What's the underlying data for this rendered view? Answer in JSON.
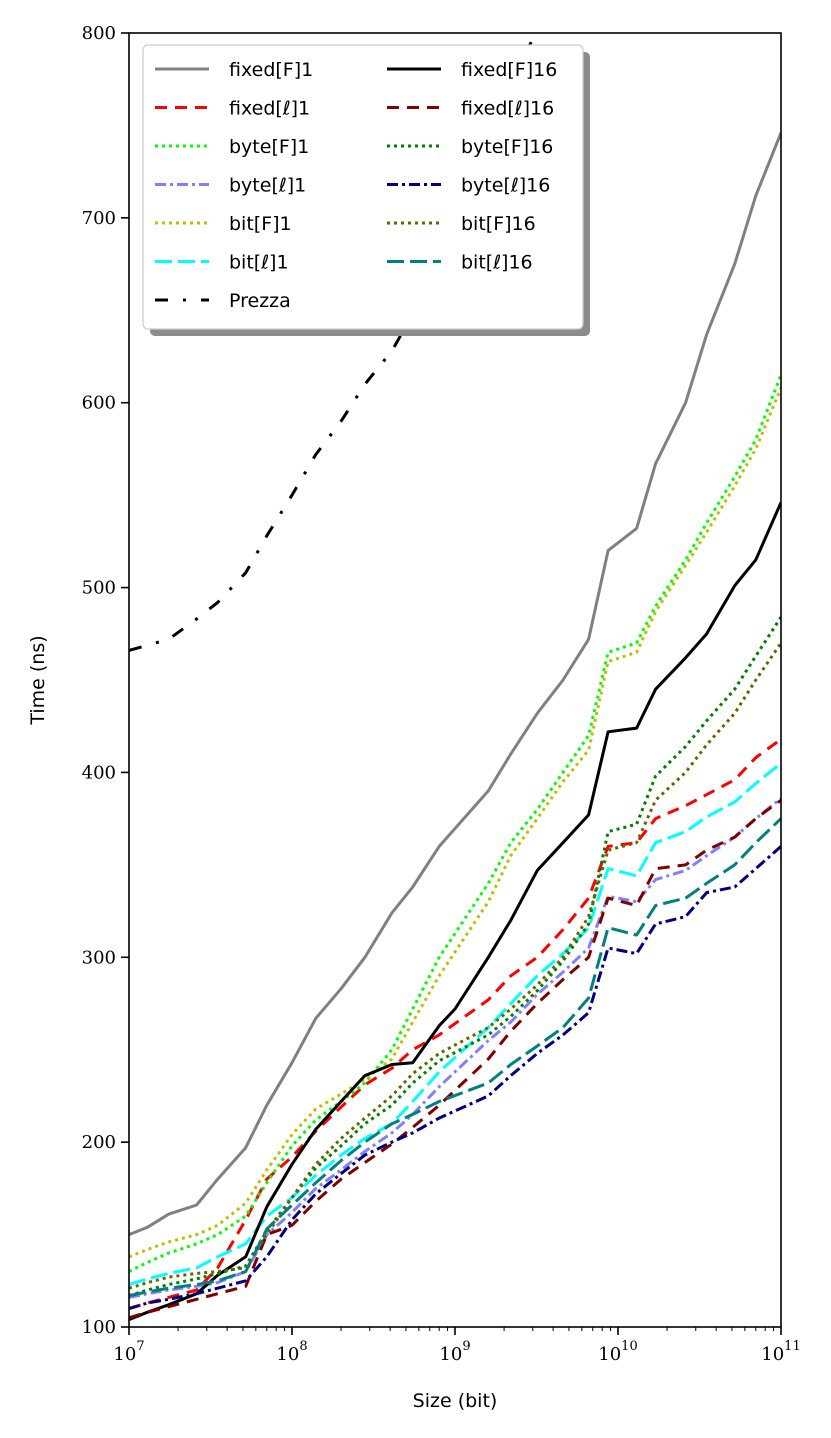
{
  "chart_data": {
    "type": "line",
    "title": "",
    "xlabel": "Size (bit)",
    "ylabel": "Time (ns)",
    "x_scale": "log",
    "xlim": [
      10000000,
      100000000000
    ],
    "ylim": [
      100,
      800
    ],
    "x_ticks": [
      {
        "value": 10000000,
        "base": "10",
        "exp": "7"
      },
      {
        "value": 100000000,
        "base": "10",
        "exp": "8"
      },
      {
        "value": 1000000000,
        "base": "10",
        "exp": "9"
      },
      {
        "value": 10000000000,
        "base": "10",
        "exp": "10"
      },
      {
        "value": 100000000000,
        "base": "10",
        "exp": "11"
      }
    ],
    "y_ticks": [
      {
        "value": 100,
        "label": "100"
      },
      {
        "value": 200,
        "label": "200"
      },
      {
        "value": 300,
        "label": "300"
      },
      {
        "value": 400,
        "label": "400"
      },
      {
        "value": 500,
        "label": "500"
      },
      {
        "value": 600,
        "label": "600"
      },
      {
        "value": 700,
        "label": "700"
      },
      {
        "value": 800,
        "label": "800"
      }
    ],
    "grid": false,
    "legend": {
      "position": "top-left",
      "columns": 2
    },
    "series": [
      {
        "name": "fixed[F]1",
        "color": "#808080",
        "dash": "solid",
        "x": [
          10000000.0,
          13000000.0,
          17500000.0,
          26000000.0,
          35000000.0,
          52000000.0,
          70000000.0,
          100000000.0,
          140000000.0,
          200000000.0,
          280000000.0,
          410000000.0,
          550000000.0,
          800000000.0,
          1600000000.0,
          2200000000.0,
          3200000000.0,
          4600000000.0,
          6600000000.0,
          8700000000.0,
          13000000000.0,
          17000000000.0,
          26000000000.0,
          35000000000.0,
          52000000000.0,
          70000000000.0,
          100000000000.0
        ],
        "y": [
          150,
          154,
          161,
          166,
          180,
          197,
          220,
          243,
          267,
          283,
          300,
          324,
          338,
          360,
          390,
          410,
          432,
          450,
          472,
          520,
          532,
          567,
          600,
          637,
          675,
          712,
          746
        ]
      },
      {
        "name": "fixed[ℓ]1",
        "color": "#ff0000",
        "dash": "dashed",
        "x": [
          10000000.0,
          13000000.0,
          17500000.0,
          26000000.0,
          35000000.0,
          52000000.0,
          70000000.0,
          100000000.0,
          140000000.0,
          200000000.0,
          280000000.0,
          410000000.0,
          550000000.0,
          800000000.0,
          1600000000.0,
          2200000000.0,
          3200000000.0,
          4600000000.0,
          6600000000.0,
          8700000000.0,
          13000000000.0,
          17000000000.0,
          26000000000.0,
          35000000000.0,
          52000000000.0,
          70000000000.0,
          100000000000.0
        ],
        "y": [
          110,
          113,
          116,
          120,
          132,
          158,
          180,
          192,
          206,
          219,
          231,
          240,
          250,
          258,
          277,
          290,
          300,
          315,
          332,
          360,
          362,
          375,
          382,
          388,
          396,
          408,
          418
        ]
      },
      {
        "name": "byte[F]1",
        "color": "#00ff00",
        "dash": "dotted",
        "x": [
          10000000.0,
          13000000.0,
          17500000.0,
          26000000.0,
          35000000.0,
          52000000.0,
          70000000.0,
          100000000.0,
          140000000.0,
          200000000.0,
          280000000.0,
          410000000.0,
          550000000.0,
          800000000.0,
          1600000000.0,
          2200000000.0,
          3200000000.0,
          4600000000.0,
          6600000000.0,
          8700000000.0,
          13000000000.0,
          17000000000.0,
          26000000000.0,
          35000000000.0,
          52000000000.0,
          70000000000.0,
          100000000000.0
        ],
        "y": [
          130,
          135,
          140,
          145,
          150,
          160,
          178,
          198,
          212,
          222,
          232,
          250,
          272,
          300,
          340,
          362,
          380,
          400,
          420,
          465,
          470,
          490,
          515,
          535,
          560,
          580,
          615
        ]
      },
      {
        "name": "byte[ℓ]1",
        "color": "#8080ff",
        "dash": "dashdot",
        "x": [
          10000000.0,
          13000000.0,
          17500000.0,
          26000000.0,
          35000000.0,
          52000000.0,
          70000000.0,
          100000000.0,
          140000000.0,
          200000000.0,
          280000000.0,
          410000000.0,
          550000000.0,
          800000000.0,
          1600000000.0,
          2200000000.0,
          3200000000.0,
          4600000000.0,
          6600000000.0,
          8700000000.0,
          13000000000.0,
          17000000000.0,
          26000000000.0,
          35000000000.0,
          52000000000.0,
          70000000000.0,
          100000000000.0
        ],
        "y": [
          116,
          118,
          120,
          122,
          124,
          130,
          150,
          162,
          175,
          185,
          195,
          205,
          215,
          230,
          255,
          265,
          280,
          292,
          305,
          333,
          330,
          342,
          347,
          355,
          365,
          375,
          386
        ]
      },
      {
        "name": "bit[F]1",
        "color": "#bfbf00",
        "dash": "dotted",
        "x": [
          10000000.0,
          13000000.0,
          17500000.0,
          26000000.0,
          35000000.0,
          52000000.0,
          70000000.0,
          100000000.0,
          140000000.0,
          200000000.0,
          280000000.0,
          410000000.0,
          550000000.0,
          800000000.0,
          1600000000.0,
          2200000000.0,
          3200000000.0,
          4600000000.0,
          6600000000.0,
          8700000000.0,
          13000000000.0,
          17000000000.0,
          26000000000.0,
          35000000000.0,
          52000000000.0,
          70000000000.0,
          100000000000.0
        ],
        "y": [
          138,
          142,
          146,
          150,
          155,
          167,
          185,
          204,
          218,
          226,
          234,
          245,
          265,
          290,
          330,
          355,
          375,
          395,
          412,
          460,
          465,
          487,
          512,
          530,
          555,
          575,
          608
        ]
      },
      {
        "name": "bit[ℓ]1",
        "color": "#00ffff",
        "dash": "longdash",
        "x": [
          10000000.0,
          13000000.0,
          17500000.0,
          26000000.0,
          35000000.0,
          52000000.0,
          70000000.0,
          100000000.0,
          140000000.0,
          200000000.0,
          280000000.0,
          410000000.0,
          550000000.0,
          800000000.0,
          1600000000.0,
          2200000000.0,
          3200000000.0,
          4600000000.0,
          6600000000.0,
          8700000000.0,
          13000000000.0,
          17000000000.0,
          26000000000.0,
          35000000000.0,
          52000000000.0,
          70000000000.0,
          100000000000.0
        ],
        "y": [
          123,
          126,
          129,
          132,
          138,
          145,
          160,
          170,
          182,
          193,
          202,
          210,
          222,
          238,
          262,
          275,
          290,
          302,
          316,
          348,
          344,
          362,
          368,
          376,
          384,
          394,
          405
        ]
      },
      {
        "name": "Prezza",
        "color": "#000000",
        "dash": "loosedashdot",
        "x": [
          10000000.0,
          17500000.0,
          26000000.0,
          35000000.0,
          52000000.0,
          70000000.0,
          100000000.0,
          140000000.0,
          200000000.0,
          280000000.0,
          410000000.0,
          550000000.0,
          800000000.0,
          1200000000.0,
          1800000000.0,
          2600000000.0,
          3300000000.0
        ],
        "y": [
          466,
          472,
          483,
          492,
          508,
          528,
          550,
          572,
          590,
          610,
          628,
          648,
          672,
          710,
          748,
          785,
          805
        ]
      },
      {
        "name": "fixed[F]16",
        "color": "#000000",
        "dash": "solid",
        "x": [
          10000000.0,
          13000000.0,
          17500000.0,
          26000000.0,
          35000000.0,
          52000000.0,
          70000000.0,
          100000000.0,
          140000000.0,
          200000000.0,
          280000000.0,
          410000000.0,
          550000000.0,
          800000000.0,
          1000000000.0,
          1600000000.0,
          2200000000.0,
          3200000000.0,
          4600000000.0,
          6600000000.0,
          8700000000.0,
          13000000000.0,
          17000000000.0,
          26000000000.0,
          35000000000.0,
          52000000000.0,
          70000000000.0,
          100000000000.0
        ],
        "y": [
          104,
          108,
          112,
          118,
          128,
          138,
          165,
          188,
          207,
          222,
          236,
          242,
          243,
          263,
          272,
          300,
          320,
          347,
          362,
          377,
          422,
          424,
          445,
          462,
          475,
          501,
          515,
          546
        ]
      },
      {
        "name": "fixed[ℓ]16",
        "color": "#800000",
        "dash": "dashed",
        "x": [
          10000000.0,
          13000000.0,
          17500000.0,
          26000000.0,
          35000000.0,
          52000000.0,
          70000000.0,
          100000000.0,
          140000000.0,
          200000000.0,
          280000000.0,
          410000000.0,
          550000000.0,
          800000000.0,
          1600000000.0,
          2200000000.0,
          3200000000.0,
          4600000000.0,
          6600000000.0,
          8700000000.0,
          13000000000.0,
          17000000000.0,
          26000000000.0,
          35000000000.0,
          52000000000.0,
          70000000000.0,
          100000000000.0
        ],
        "y": [
          105,
          108,
          111,
          115,
          118,
          122,
          150,
          155,
          168,
          180,
          189,
          199,
          208,
          220,
          245,
          260,
          275,
          288,
          300,
          332,
          328,
          348,
          350,
          358,
          365,
          375,
          385
        ]
      },
      {
        "name": "byte[F]16",
        "color": "#008000",
        "dash": "dotted",
        "x": [
          10000000.0,
          13000000.0,
          17500000.0,
          26000000.0,
          35000000.0,
          52000000.0,
          70000000.0,
          100000000.0,
          140000000.0,
          200000000.0,
          280000000.0,
          410000000.0,
          550000000.0,
          800000000.0,
          1600000000.0,
          2200000000.0,
          3200000000.0,
          4600000000.0,
          6600000000.0,
          8700000000.0,
          13000000000.0,
          17000000000.0,
          26000000000.0,
          35000000000.0,
          52000000000.0,
          70000000000.0,
          100000000000.0
        ],
        "y": [
          117,
          120,
          123,
          126,
          129,
          133,
          152,
          170,
          186,
          198,
          210,
          220,
          232,
          244,
          258,
          268,
          282,
          298,
          318,
          368,
          372,
          398,
          414,
          428,
          445,
          463,
          484
        ]
      },
      {
        "name": "byte[ℓ]16",
        "color": "#000080",
        "dash": "dashdot",
        "x": [
          10000000.0,
          13000000.0,
          17500000.0,
          26000000.0,
          35000000.0,
          52000000.0,
          70000000.0,
          100000000.0,
          140000000.0,
          200000000.0,
          280000000.0,
          410000000.0,
          550000000.0,
          800000000.0,
          1600000000.0,
          2200000000.0,
          3200000000.0,
          4600000000.0,
          6600000000.0,
          8700000000.0,
          13000000000.0,
          17000000000.0,
          26000000000.0,
          35000000000.0,
          52000000000.0,
          70000000000.0,
          100000000000.0
        ],
        "y": [
          110,
          113,
          115,
          118,
          121,
          125,
          138,
          158,
          172,
          183,
          193,
          200,
          205,
          213,
          225,
          236,
          248,
          258,
          270,
          305,
          302,
          318,
          322,
          335,
          338,
          348,
          360
        ]
      },
      {
        "name": "bit[F]16",
        "color": "#666600",
        "dash": "dotted",
        "x": [
          10000000.0,
          13000000.0,
          17500000.0,
          26000000.0,
          35000000.0,
          52000000.0,
          70000000.0,
          100000000.0,
          140000000.0,
          200000000.0,
          280000000.0,
          410000000.0,
          550000000.0,
          800000000.0,
          1600000000.0,
          2200000000.0,
          3200000000.0,
          4600000000.0,
          6600000000.0,
          8700000000.0,
          13000000000.0,
          17000000000.0,
          26000000000.0,
          35000000000.0,
          52000000000.0,
          70000000000.0,
          100000000000.0
        ],
        "y": [
          121,
          124,
          127,
          129,
          130,
          132,
          150,
          170,
          188,
          202,
          213,
          225,
          237,
          248,
          262,
          272,
          285,
          300,
          322,
          358,
          362,
          385,
          400,
          415,
          432,
          450,
          470
        ]
      },
      {
        "name": "bit[ℓ]16",
        "color": "#008080",
        "dash": "longdash",
        "x": [
          10000000.0,
          13000000.0,
          17500000.0,
          26000000.0,
          35000000.0,
          52000000.0,
          70000000.0,
          100000000.0,
          140000000.0,
          200000000.0,
          280000000.0,
          410000000.0,
          550000000.0,
          800000000.0,
          1600000000.0,
          2200000000.0,
          3200000000.0,
          4600000000.0,
          6600000000.0,
          8700000000.0,
          13000000000.0,
          17000000000.0,
          26000000000.0,
          35000000000.0,
          52000000000.0,
          70000000000.0,
          100000000000.0
        ],
        "y": [
          117,
          119,
          121,
          123,
          125,
          130,
          153,
          166,
          178,
          190,
          200,
          210,
          215,
          222,
          232,
          242,
          252,
          262,
          278,
          316,
          312,
          328,
          332,
          340,
          350,
          362,
          375
        ]
      }
    ]
  }
}
